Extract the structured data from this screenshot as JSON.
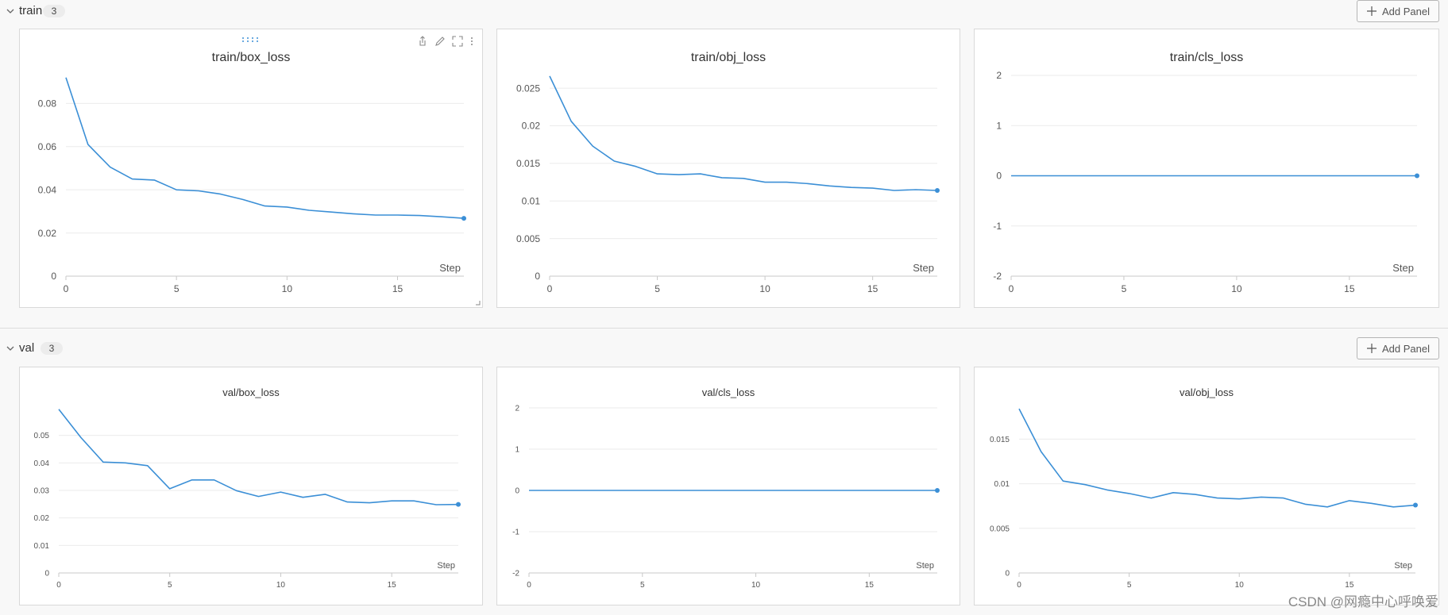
{
  "sections": [
    {
      "title": "train",
      "count": "3",
      "add_panel_label": "Add Panel"
    },
    {
      "title": "val",
      "count": "3",
      "add_panel_label": "Add Panel"
    }
  ],
  "watermark": "CSDN @网瘾中心呼唤爱",
  "colors": {
    "line": "#3b8fd6",
    "grid": "#ebebeb",
    "axis": "#c8c8c8",
    "tick": "#555555"
  },
  "chart_data": [
    {
      "type": "line",
      "title": "train/box_loss",
      "xlabel": "Step",
      "ylabel": "",
      "xlim": [
        0,
        18
      ],
      "ylim": [
        0,
        0.093
      ],
      "xticks": [
        0,
        5,
        10,
        15
      ],
      "yticks": [
        0,
        0.02,
        0.04,
        0.06,
        0.08
      ],
      "ytick_labels": [
        "0",
        "0.02",
        "0.04",
        "0.06",
        "0.08"
      ],
      "x": [
        0,
        1,
        2,
        3,
        4,
        5,
        6,
        7,
        8,
        9,
        10,
        11,
        12,
        13,
        14,
        15,
        16,
        17,
        18
      ],
      "y": [
        0.092,
        0.061,
        0.0505,
        0.045,
        0.0445,
        0.04,
        0.0395,
        0.038,
        0.0355,
        0.0325,
        0.032,
        0.0305,
        0.0297,
        0.0289,
        0.0283,
        0.0283,
        0.0281,
        0.0275,
        0.0268
      ]
    },
    {
      "type": "line",
      "title": "train/obj_loss",
      "xlabel": "Step",
      "ylabel": "",
      "xlim": [
        0,
        18
      ],
      "ylim": [
        0,
        0.0267
      ],
      "xticks": [
        0,
        5,
        10,
        15
      ],
      "yticks": [
        0,
        0.005,
        0.01,
        0.015,
        0.02,
        0.025
      ],
      "ytick_labels": [
        "0",
        "0.005",
        "0.01",
        "0.015",
        "0.02",
        "0.025"
      ],
      "x": [
        0,
        1,
        2,
        3,
        4,
        5,
        6,
        7,
        8,
        9,
        10,
        11,
        12,
        13,
        14,
        15,
        16,
        17,
        18
      ],
      "y": [
        0.0266,
        0.0206,
        0.0173,
        0.0153,
        0.0146,
        0.0136,
        0.0135,
        0.0136,
        0.0131,
        0.013,
        0.0125,
        0.0125,
        0.0123,
        0.012,
        0.0118,
        0.0117,
        0.0114,
        0.0115,
        0.0114
      ]
    },
    {
      "type": "line",
      "title": "train/cls_loss",
      "xlabel": "Step",
      "ylabel": "",
      "xlim": [
        0,
        18
      ],
      "ylim": [
        -2,
        2
      ],
      "xticks": [
        0,
        5,
        10,
        15
      ],
      "yticks": [
        -2,
        -1,
        0,
        1,
        2
      ],
      "ytick_labels": [
        "-2",
        "-1",
        "0",
        "1",
        "2"
      ],
      "x": [
        0,
        1,
        2,
        3,
        4,
        5,
        6,
        7,
        8,
        9,
        10,
        11,
        12,
        13,
        14,
        15,
        16,
        17,
        18
      ],
      "y": [
        0,
        0,
        0,
        0,
        0,
        0,
        0,
        0,
        0,
        0,
        0,
        0,
        0,
        0,
        0,
        0,
        0,
        0,
        0
      ]
    },
    {
      "type": "line",
      "title": "val/box_loss",
      "xlabel": "Step",
      "ylabel": "",
      "xlim": [
        0,
        18
      ],
      "ylim": [
        0,
        0.06
      ],
      "xticks": [
        0,
        5,
        10,
        15
      ],
      "yticks": [
        0,
        0.01,
        0.02,
        0.03,
        0.04,
        0.05
      ],
      "ytick_labels": [
        "0",
        "0.01",
        "0.02",
        "0.03",
        "0.04",
        "0.05"
      ],
      "x": [
        0,
        1,
        2,
        3,
        4,
        5,
        6,
        7,
        8,
        9,
        10,
        11,
        12,
        13,
        14,
        15,
        16,
        17,
        18
      ],
      "y": [
        0.0595,
        0.0492,
        0.0403,
        0.04,
        0.039,
        0.0306,
        0.0338,
        0.0338,
        0.0299,
        0.0278,
        0.0294,
        0.0275,
        0.0286,
        0.0258,
        0.0255,
        0.0262,
        0.0262,
        0.0248,
        0.0249
      ]
    },
    {
      "type": "line",
      "title": "val/cls_loss",
      "xlabel": "Step",
      "ylabel": "",
      "xlim": [
        0,
        18
      ],
      "ylim": [
        -2,
        2
      ],
      "xticks": [
        0,
        5,
        10,
        15
      ],
      "yticks": [
        -2,
        -1,
        0,
        1,
        2
      ],
      "ytick_labels": [
        "-2",
        "-1",
        "0",
        "1",
        "2"
      ],
      "x": [
        0,
        1,
        2,
        3,
        4,
        5,
        6,
        7,
        8,
        9,
        10,
        11,
        12,
        13,
        14,
        15,
        16,
        17,
        18
      ],
      "y": [
        0,
        0,
        0,
        0,
        0,
        0,
        0,
        0,
        0,
        0,
        0,
        0,
        0,
        0,
        0,
        0,
        0,
        0,
        0
      ]
    },
    {
      "type": "line",
      "title": "val/obj_loss",
      "xlabel": "Step",
      "ylabel": "",
      "xlim": [
        0,
        18
      ],
      "ylim": [
        0,
        0.0185
      ],
      "xticks": [
        0,
        5,
        10,
        15
      ],
      "yticks": [
        0,
        0.005,
        0.01,
        0.015
      ],
      "ytick_labels": [
        "0",
        "0.005",
        "0.01",
        "0.015"
      ],
      "x": [
        0,
        1,
        2,
        3,
        4,
        5,
        6,
        7,
        8,
        9,
        10,
        11,
        12,
        13,
        14,
        15,
        16,
        17,
        18
      ],
      "y": [
        0.0184,
        0.0136,
        0.0103,
        0.0099,
        0.0093,
        0.0089,
        0.0084,
        0.009,
        0.0088,
        0.0084,
        0.0083,
        0.0085,
        0.0084,
        0.0077,
        0.0074,
        0.0081,
        0.0078,
        0.0074,
        0.0076
      ]
    }
  ]
}
